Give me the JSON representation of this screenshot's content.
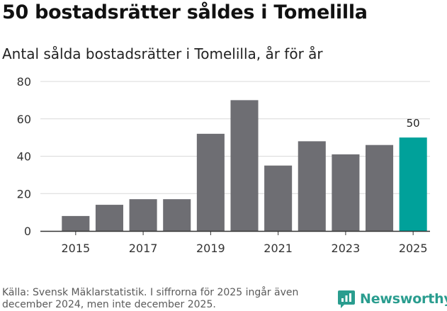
{
  "header": {
    "title": "50 bostadsrätter såldes i Tomelilla",
    "subtitle": "Antal sålda bostadsrätter i Tomelilla, år för år"
  },
  "footer": {
    "source": "Källa: Svensk Mäklarstatistik. I siffrorna för 2025 ingår även december 2024, men inte december 2025.",
    "brand": "Newsworthy"
  },
  "colors": {
    "bar": "#6e6e73",
    "highlight": "#00a19a",
    "grid": "#d9d9d9",
    "axis": "#333333",
    "brand": "#2a9d8f"
  },
  "chart_data": {
    "type": "bar",
    "title": "Antal sålda bostadsrätter i Tomelilla, år för år",
    "categories": [
      "2015",
      "2016",
      "2017",
      "2018",
      "2019",
      "2020",
      "2021",
      "2022",
      "2023",
      "2024",
      "2025"
    ],
    "values": [
      8,
      14,
      17,
      17,
      52,
      70,
      35,
      48,
      41,
      46,
      50
    ],
    "highlight_index": 10,
    "data_labels": [
      {
        "index": 10,
        "text": "50"
      }
    ],
    "xticks": [
      "2015",
      "2017",
      "2019",
      "2021",
      "2023",
      "2025"
    ],
    "yticks": [
      0,
      20,
      40,
      60,
      80
    ],
    "ylim": [
      0,
      80
    ],
    "xlabel": "",
    "ylabel": "",
    "grid": true
  }
}
